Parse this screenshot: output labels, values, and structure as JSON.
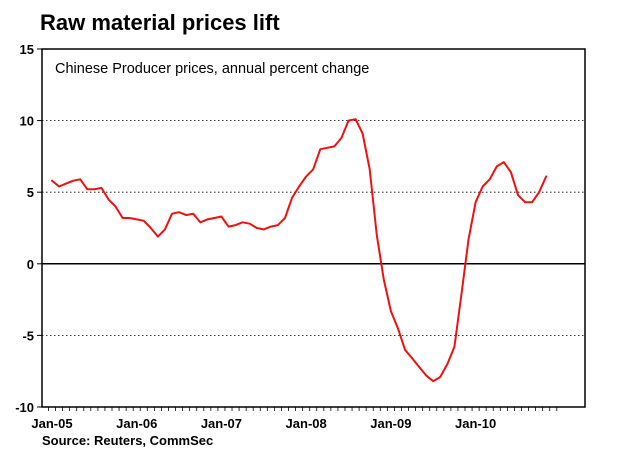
{
  "chart_data": {
    "type": "line",
    "title": "Raw material prices lift",
    "subtitle": "Chinese Producer prices, annual percent change",
    "source": "Source: Reuters, CommSec",
    "xlabel": "",
    "ylabel": "",
    "ylim": [
      -10,
      15
    ],
    "y_ticks": [
      "15",
      "10",
      "5",
      "0",
      "-5",
      "-10"
    ],
    "x_ticks": [
      "Jan-05",
      "Jan-06",
      "Jan-07",
      "Jan-08",
      "Jan-09",
      "Jan-10"
    ],
    "grid": "horizontal dotted",
    "line_color": "#ee1111",
    "series": [
      {
        "x": [
          "2005-01",
          "2005-02",
          "2005-03",
          "2005-04",
          "2005-05",
          "2005-06",
          "2005-07",
          "2005-08",
          "2005-09",
          "2005-10",
          "2005-11",
          "2005-12",
          "2006-01",
          "2006-02",
          "2006-03",
          "2006-04",
          "2006-05",
          "2006-06",
          "2006-07",
          "2006-08",
          "2006-09",
          "2006-10",
          "2006-11",
          "2006-12",
          "2007-01",
          "2007-02",
          "2007-03",
          "2007-04",
          "2007-05",
          "2007-06",
          "2007-07",
          "2007-08",
          "2007-09",
          "2007-10",
          "2007-11",
          "2007-12",
          "2008-01",
          "2008-02",
          "2008-03",
          "2008-04",
          "2008-05",
          "2008-06",
          "2008-07",
          "2008-08",
          "2008-09",
          "2008-10",
          "2008-11",
          "2008-12",
          "2009-01",
          "2009-02",
          "2009-03",
          "2009-04",
          "2009-05",
          "2009-06",
          "2009-07",
          "2009-08",
          "2009-09",
          "2009-10",
          "2009-11",
          "2009-12",
          "2010-01",
          "2010-02",
          "2010-03",
          "2010-04",
          "2010-05",
          "2010-06",
          "2010-07",
          "2010-08",
          "2010-09",
          "2010-10",
          "2010-11"
        ],
        "values": [
          5.8,
          5.4,
          5.6,
          5.8,
          5.9,
          5.2,
          5.2,
          5.3,
          4.5,
          4.0,
          3.2,
          3.2,
          3.1,
          3.0,
          2.5,
          1.9,
          2.4,
          3.5,
          3.6,
          3.4,
          3.5,
          2.9,
          3.1,
          3.2,
          3.3,
          2.6,
          2.7,
          2.9,
          2.8,
          2.5,
          2.4,
          2.6,
          2.7,
          3.2,
          4.6,
          5.4,
          6.1,
          6.6,
          8.0,
          8.1,
          8.2,
          8.8,
          10.0,
          10.1,
          9.1,
          6.6,
          2.0,
          -1.1,
          -3.3,
          -4.5,
          -6.0,
          -6.6,
          -7.2,
          -7.8,
          -8.2,
          -7.9,
          -7.0,
          -5.8,
          -2.1,
          1.7,
          4.3,
          5.4,
          5.9,
          6.8,
          7.1,
          6.4,
          4.8,
          4.3,
          4.3,
          5.0,
          6.1
        ]
      }
    ]
  }
}
